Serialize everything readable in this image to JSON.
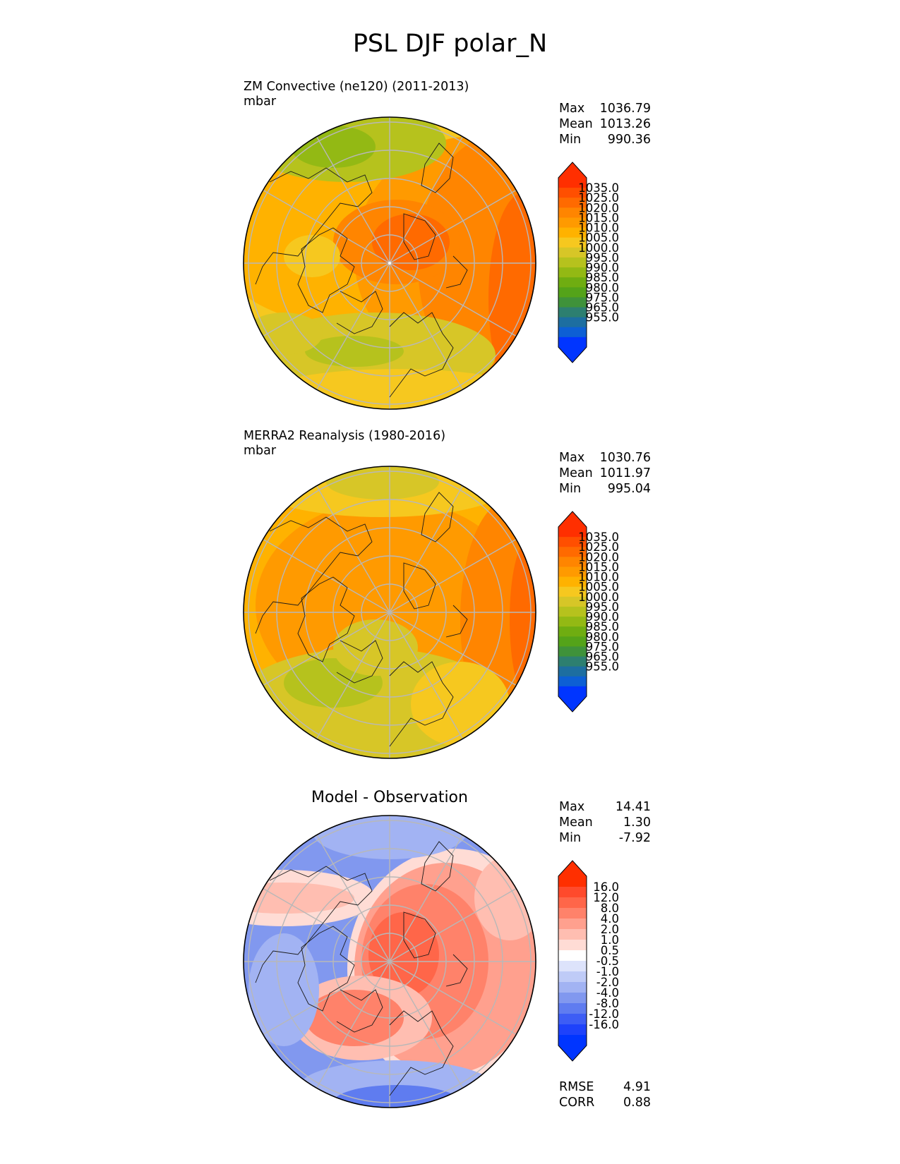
{
  "figure": {
    "title": "PSL DJF polar_N"
  },
  "panels": [
    {
      "id": "test",
      "title_line1": "ZM Convective (ne120) (2011-2013)",
      "title_line2": "mbar",
      "stats": {
        "max_label": "Max",
        "max": "1036.79",
        "mean_label": "Mean",
        "mean": "1013.26",
        "min_label": "Min",
        "min": "990.36"
      }
    },
    {
      "id": "reference",
      "title_line1": "MERRA2 Reanalysis (1980-2016)",
      "title_line2": "mbar",
      "stats": {
        "max_label": "Max",
        "max": "1030.76",
        "mean_label": "Mean",
        "mean": "1011.97",
        "min_label": "Min",
        "min": "995.04"
      }
    },
    {
      "id": "difference",
      "title": "Model - Observation",
      "stats": {
        "max_label": "Max",
        "max": "14.41",
        "mean_label": "Mean",
        "mean": "1.30",
        "min_label": "Min",
        "min": "-7.92"
      },
      "metrics": {
        "rmse_label": "RMSE",
        "rmse": "4.91",
        "corr_label": "CORR",
        "corr": "0.88"
      }
    }
  ],
  "colorbars": {
    "field": {
      "labels": [
        "1035.0",
        "1025.0",
        "1020.0",
        "1015.0",
        "1010.0",
        "1005.0",
        "1000.0",
        "995.0",
        "990.0",
        "985.0",
        "980.0",
        "975.0",
        "965.0",
        "955.0"
      ],
      "colors": [
        "#ff2f00",
        "#ff4f00",
        "#ff6a00",
        "#ff8500",
        "#ff9a00",
        "#ffb200",
        "#f6c81f",
        "#d7c627",
        "#b6c21d",
        "#93b914",
        "#6fad11",
        "#54a319",
        "#3f923a",
        "#2d7f70",
        "#1d6ea0",
        "#0d5fd4",
        "#0035ff"
      ],
      "extend_top_color": "#ff2f00",
      "extend_bottom_color": "#0035ff"
    },
    "diff": {
      "labels": [
        "16.0",
        "12.0",
        "8.0",
        "4.0",
        "2.0",
        "1.0",
        "0.5",
        "-0.5",
        "-1.0",
        "-2.0",
        "-4.0",
        "-8.0",
        "-12.0",
        "-16.0"
      ],
      "colors": [
        "#ff2f00",
        "#ff4a2c",
        "#ff6649",
        "#ff826a",
        "#ffa08e",
        "#ffbeb1",
        "#ffdcd5",
        "#ffffff",
        "#dde3fb",
        "#bfcbf7",
        "#a2b3f3",
        "#8198ef",
        "#5f7cf0",
        "#3d5df5",
        "#1e42fb",
        "#0035ff"
      ],
      "extend_top_color": "#ff2f00",
      "extend_bottom_color": "#0035ff"
    }
  },
  "maps": {
    "projection": "north polar stereographic",
    "graticule": "on",
    "coastlines": "on"
  }
}
